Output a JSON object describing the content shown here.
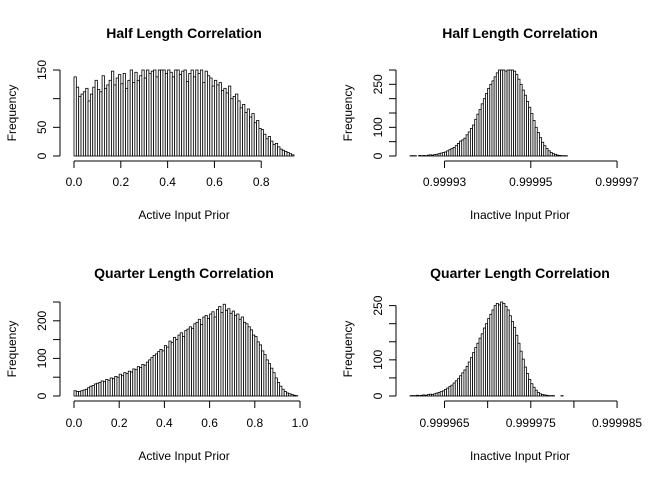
{
  "chart_data": [
    {
      "type": "bar",
      "title": "Half Length Correlation",
      "xlabel": "Active Input Prior",
      "ylabel": "Frequency",
      "xlim": [
        0.0,
        0.94
      ],
      "ylim": [
        0,
        150
      ],
      "xticks": [
        0.0,
        0.2,
        0.4,
        0.6,
        0.8
      ],
      "xtick_labels": [
        "0.0",
        "0.2",
        "0.4",
        "0.6",
        "0.8"
      ],
      "yticks": [
        0,
        50,
        100,
        150
      ],
      "ytick_labels": [
        "0",
        "50",
        "",
        "150"
      ],
      "bin_start": 0.0,
      "bin_width": 0.01,
      "values": [
        138,
        120,
        104,
        108,
        112,
        118,
        96,
        108,
        120,
        132,
        116,
        112,
        140,
        118,
        124,
        132,
        148,
        124,
        136,
        142,
        126,
        144,
        118,
        132,
        152,
        128,
        146,
        132,
        140,
        154,
        136,
        150,
        144,
        148,
        160,
        138,
        152,
        162,
        156,
        144,
        164,
        146,
        138,
        158,
        160,
        142,
        148,
        154,
        130,
        144,
        162,
        138,
        156,
        144,
        150,
        128,
        148,
        140,
        136,
        122,
        132,
        124,
        128,
        114,
        118,
        110,
        122,
        100,
        104,
        108,
        96,
        84,
        90,
        76,
        82,
        68,
        74,
        58,
        62,
        48,
        46,
        38,
        30,
        34,
        26,
        20,
        22,
        16,
        12,
        10,
        8,
        6,
        4,
        2
      ],
      "grid": false
    },
    {
      "type": "bar",
      "title": "Half Length Correlation",
      "xlabel": "Inactive Input Prior",
      "ylabel": "Frequency",
      "xlim": [
        0.999922,
        0.999973
      ],
      "ylim": [
        0,
        300
      ],
      "xticks": [
        0.99993,
        0.99995,
        0.99997
      ],
      "xtick_labels": [
        "0.99993",
        "0.99995",
        "0.99997"
      ],
      "yticks": [
        0,
        50,
        100,
        150,
        200,
        250,
        300
      ],
      "ytick_labels": [
        "0",
        "",
        "100",
        "",
        "",
        "250",
        ""
      ],
      "bin_start": 0.999922,
      "bin_width": 5e-07,
      "values": [
        1,
        1,
        1,
        0,
        2,
        1,
        2,
        1,
        3,
        4,
        3,
        5,
        6,
        8,
        10,
        12,
        14,
        18,
        22,
        26,
        30,
        36,
        44,
        52,
        56,
        62,
        74,
        84,
        96,
        108,
        128,
        146,
        162,
        182,
        200,
        218,
        236,
        250,
        262,
        276,
        290,
        302,
        306,
        300,
        296,
        310,
        302,
        312,
        296,
        284,
        268,
        250,
        230,
        212,
        190,
        170,
        148,
        124,
        100,
        82,
        64,
        48,
        36,
        26,
        18,
        12,
        8,
        6,
        3,
        2,
        1,
        1,
        1,
        0
      ],
      "grid": false
    },
    {
      "type": "bar",
      "title": "Quarter Length Correlation",
      "xlabel": "Active Input Prior",
      "ylabel": "Frequency",
      "xlim": [
        0.0,
        1.0
      ],
      "ylim": [
        0,
        250
      ],
      "xticks": [
        0.0,
        0.2,
        0.4,
        0.6,
        0.8,
        1.0
      ],
      "xtick_labels": [
        "0.0",
        "0.2",
        "0.4",
        "0.6",
        "0.8",
        "1.0"
      ],
      "yticks": [
        0,
        50,
        100,
        150,
        200,
        250
      ],
      "ytick_labels": [
        "0",
        "100",
        "200"
      ],
      "ytick_values": [
        0,
        100,
        200
      ],
      "bin_start": 0.0,
      "bin_width": 0.01,
      "values": [
        14,
        12,
        12,
        14,
        16,
        18,
        22,
        26,
        28,
        32,
        34,
        36,
        40,
        38,
        44,
        42,
        48,
        46,
        52,
        50,
        58,
        54,
        62,
        60,
        66,
        64,
        72,
        70,
        78,
        76,
        84,
        82,
        90,
        96,
        102,
        108,
        112,
        118,
        124,
        120,
        134,
        130,
        146,
        142,
        156,
        150,
        162,
        168,
        158,
        174,
        178,
        184,
        180,
        192,
        196,
        204,
        190,
        210,
        214,
        206,
        218,
        224,
        210,
        230,
        238,
        222,
        244,
        228,
        232,
        220,
        226,
        214,
        218,
        204,
        210,
        196,
        192,
        184,
        176,
        162,
        158,
        144,
        136,
        120,
        110,
        96,
        86,
        74,
        62,
        48,
        36,
        26,
        18,
        12,
        8,
        6,
        4,
        2,
        1
      ],
      "grid": false
    },
    {
      "type": "bar",
      "title": "Quarter Length Correlation",
      "xlabel": "Inactive Input Prior",
      "ylabel": "Frequency",
      "xlim": [
        0.999961,
        0.9999865
      ],
      "ylim": [
        0,
        260
      ],
      "xticks": [
        0.999965,
        0.99997,
        0.999975,
        0.99998,
        0.999985
      ],
      "xtick_labels": [
        "0.999965",
        "",
        "0.999975",
        "",
        "0.999985"
      ],
      "yticks": [
        0,
        50,
        100,
        150,
        200,
        250
      ],
      "ytick_labels": [
        "0",
        "",
        "100",
        "",
        "",
        "250"
      ],
      "bin_start": 0.999961,
      "bin_width": 2.5e-07,
      "values": [
        1,
        1,
        1,
        2,
        1,
        2,
        3,
        2,
        4,
        5,
        4,
        6,
        8,
        10,
        12,
        14,
        18,
        22,
        26,
        30,
        36,
        42,
        48,
        56,
        64,
        72,
        82,
        94,
        106,
        120,
        134,
        146,
        160,
        172,
        188,
        200,
        214,
        226,
        238,
        250,
        256,
        252,
        262,
        256,
        248,
        238,
        222,
        206,
        190,
        168,
        146,
        124,
        102,
        80,
        62,
        46,
        34,
        24,
        16,
        10,
        6,
        4,
        3,
        2,
        1,
        1,
        1,
        0,
        0,
        0,
        1,
        0,
        0,
        0,
        0,
        0,
        0,
        0,
        0,
        0,
        0,
        0,
        0,
        0,
        0,
        0,
        0,
        0,
        0,
        0,
        0,
        0,
        0,
        0,
        0,
        0,
        0,
        0,
        0,
        0,
        0,
        0
      ],
      "grid": false
    }
  ]
}
